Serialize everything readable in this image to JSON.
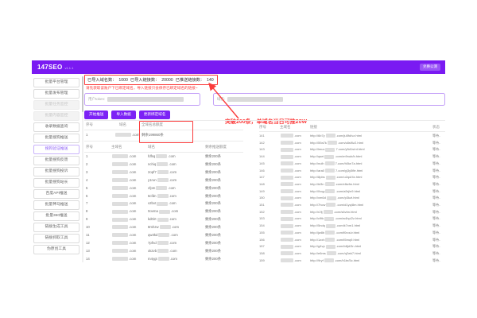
{
  "colors": {
    "accent_purple": "#7a1af2",
    "button_purple": "#7c22f5",
    "alert_red": "#fb3b3b"
  },
  "header": {
    "brand": "147SEO",
    "version": "v1.1.1",
    "action": "兑换公测"
  },
  "sidebar": {
    "items": [
      {
        "label": "批量平台管理",
        "state": "normal"
      },
      {
        "label": "批量发布管理",
        "state": "normal"
      },
      {
        "label": "批量任务监控",
        "state": "disabled"
      },
      {
        "label": "批量内容监控",
        "state": "disabled"
      },
      {
        "label": "收录数据查询",
        "state": "normal"
      },
      {
        "label": "批量搜狗推送",
        "state": "normal"
      },
      {
        "label": "搜狗验证推送",
        "state": "active"
      },
      {
        "label": "批量搜狗反馈",
        "state": "normal"
      },
      {
        "label": "批量搜狗投诉",
        "state": "normal"
      },
      {
        "label": "批量搜狗站长",
        "state": "normal"
      },
      {
        "label": "百度API推送",
        "state": "normal"
      },
      {
        "label": "批量神马推送",
        "state": "normal"
      },
      {
        "label": "批量360推送",
        "state": "normal"
      },
      {
        "label": "链接生成工具",
        "state": "normal"
      },
      {
        "label": "链接抓取工具",
        "state": "normal"
      },
      {
        "label": "伪原创工具",
        "state": "normal"
      }
    ]
  },
  "main": {
    "stats": [
      {
        "label": "已导入域名数：",
        "value": "1000"
      },
      {
        "label": "已导入链接数：",
        "value": "20000"
      },
      {
        "label": "已推送链接数：",
        "value": "140"
      }
    ],
    "warning": "请先获取该账户下已绑定域名，导入链接只会保存已绑定域名的链接~",
    "form": {
      "token_label": "用户token:",
      "domain_label": "域名:"
    },
    "toolbar": {
      "buttons": [
        "开始推送",
        "导入数据",
        "更新绑定域名"
      ]
    },
    "annotation": "突破200条，单域名当日可推20W",
    "quota_table": {
      "headers": [
        "序号",
        "域名",
        "全域名总额度"
      ],
      "row": {
        "no": "1",
        "domain_suffix": ".com",
        "quota": "剩余199860条"
      }
    },
    "domain_table": {
      "headers": [
        "序号",
        "主域名",
        "域名",
        "剩余推送额度"
      ],
      "quota_value": "剩余200条",
      "rows": [
        {
          "no": "1",
          "prefix": "fdfsq"
        },
        {
          "no": "2",
          "prefix": "nchiq"
        },
        {
          "no": "3",
          "prefix": "2opf7"
        },
        {
          "no": "4",
          "prefix": "y1run"
        },
        {
          "no": "5",
          "prefix": "cfpm"
        },
        {
          "no": "6",
          "prefix": "6cfdn"
        },
        {
          "no": "7",
          "prefix": "v2bxt"
        },
        {
          "no": "8",
          "prefix": "0ovma"
        },
        {
          "no": "9",
          "prefix": "kd0irt"
        },
        {
          "no": "10",
          "prefix": "8mhzw"
        },
        {
          "no": "11",
          "prefix": "qw3kd"
        },
        {
          "no": "12",
          "prefix": "7pfnd"
        },
        {
          "no": "13",
          "prefix": "xk2vb"
        },
        {
          "no": "14",
          "prefix": "m4ygt"
        }
      ]
    },
    "link_table": {
      "headers": [
        "序号",
        "主域名",
        "链接",
        "状态"
      ],
      "domain_suffix": ".com",
      "rows": [
        {
          "no": "141",
          "link_prefix": "http://6b7y",
          "link_suffix": ".com/ju5fd/vz.html",
          "status": "等待.."
        },
        {
          "no": "142",
          "link_prefix": "http://59a7k",
          "link_suffix": ".com/c8s9lz2.html",
          "status": "等待.."
        },
        {
          "no": "143",
          "link_prefix": "http://lmuc",
          "link_suffix": "7.com/y5d1s/rd.html",
          "status": "等待.."
        },
        {
          "no": "144",
          "link_prefix": "http://qsei",
          "link_suffix": ".com/m9nub/b.html",
          "status": "等待.."
        },
        {
          "no": "145",
          "link_prefix": "http://nuih",
          "link_suffix": "7.com/h0kn7a.html",
          "status": "等待.."
        },
        {
          "no": "146",
          "link_prefix": "http://ara0",
          "link_suffix": "7.com/yj3y5fle.html",
          "status": "等待.."
        },
        {
          "no": "147",
          "link_prefix": "http://8pbs",
          "link_suffix": ".com/u2qd/4x.html",
          "status": "等待.."
        },
        {
          "no": "148",
          "link_prefix": "http://kt3n",
          "link_suffix": ".com/e8wfm.html",
          "status": "等待.."
        },
        {
          "no": "149",
          "link_prefix": "http://0vqy",
          "link_suffix": ".com/a5rj/n9.html",
          "status": "等待.."
        },
        {
          "no": "150",
          "link_prefix": "http://xm6d",
          "link_suffix": ".com/p3kzt.html",
          "status": "等待.."
        },
        {
          "no": "151",
          "link_prefix": "http://7hcw",
          "link_suffix": ".com/d1yq/8m.html",
          "status": "等待.."
        },
        {
          "no": "152",
          "link_prefix": "http://r2fj",
          "link_suffix": ".com/s6vbn.html",
          "status": "等待.."
        },
        {
          "no": "153",
          "link_prefix": "http://c9tk",
          "link_suffix": ".com/w4hp/2z.html",
          "status": "等待.."
        },
        {
          "no": "154",
          "link_prefix": "http://5ndq",
          "link_suffix": ".com/k7xm1.html",
          "status": "等待.."
        },
        {
          "no": "155",
          "link_prefix": "http://jw8b",
          "link_suffix": ".com/f0rcs/v.html",
          "status": "等待.."
        },
        {
          "no": "156",
          "link_prefix": "http://1zxh",
          "link_suffix": ".com/t5mq9.html",
          "status": "等待.."
        },
        {
          "no": "157",
          "link_prefix": "http://g4vp",
          "link_suffix": ".com/b8jd/3n.html",
          "status": "等待.."
        },
        {
          "no": "158",
          "link_prefix": "http://e6ms",
          "link_suffix": ".com/q2wk7.html",
          "status": "等待.."
        },
        {
          "no": "159",
          "link_prefix": "http://9ryf",
          "link_suffix": ".com/h1tn/5c.html",
          "status": "等待.."
        }
      ]
    }
  }
}
